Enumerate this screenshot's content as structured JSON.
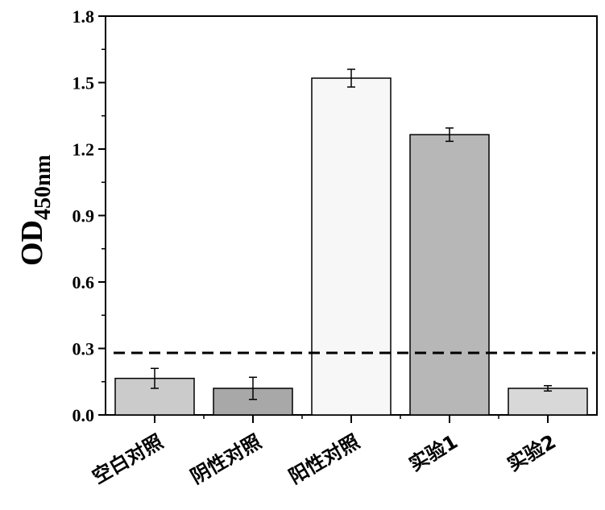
{
  "chart_data": {
    "type": "bar",
    "categories": [
      "空白对照",
      "阴性对照",
      "阳性对照",
      "实验1",
      "实验2"
    ],
    "values": [
      0.165,
      0.12,
      1.52,
      1.265,
      0.12
    ],
    "errors": [
      0.045,
      0.05,
      0.04,
      0.03,
      0.012
    ],
    "bar_colors": [
      "#cbcbcb",
      "#a8a8a8",
      "#f7f7f7",
      "#b7b7b7",
      "#d8d8d8"
    ],
    "ylabel": {
      "main": "OD",
      "sub": "450nm"
    },
    "ylim": [
      0,
      1.8
    ],
    "yticks": [
      "0.0",
      "0.3",
      "0.6",
      "0.9",
      "1.2",
      "1.5",
      "1.8"
    ],
    "threshold": 0.28,
    "threshold_style": "dashed"
  }
}
